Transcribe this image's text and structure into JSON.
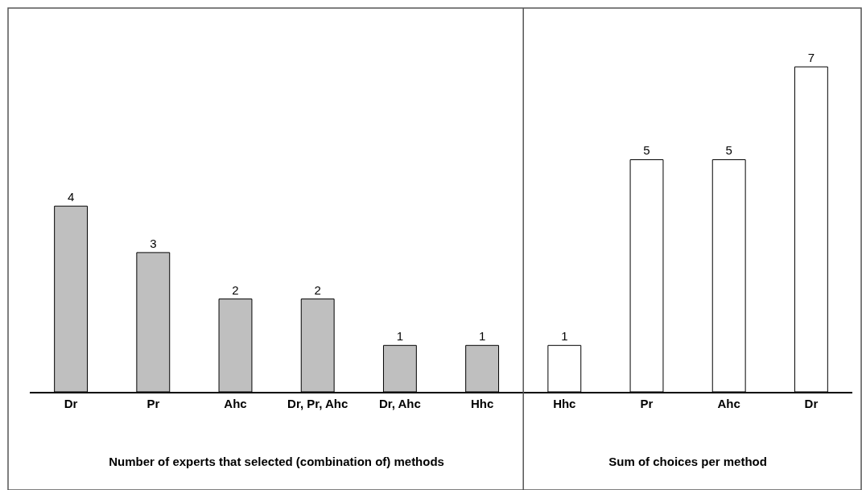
{
  "chart_data": [
    {
      "type": "bar",
      "xlabel": "Number of experts that selected (combination of) methods",
      "categories": [
        "Dr",
        "Pr",
        "Ahc",
        "Dr, Pr, Ahc",
        "Dr, Ahc",
        "Hhc"
      ],
      "values": [
        4,
        3,
        2,
        2,
        1,
        1
      ],
      "color": "#bfbfbf",
      "data_labels": true,
      "tick_labels": "x"
    },
    {
      "type": "bar",
      "xlabel": "Sum of choices per method",
      "categories": [
        "Hhc",
        "Pr",
        "Ahc",
        "Dr"
      ],
      "values": [
        1,
        5,
        5,
        7
      ],
      "color": "#ffffff",
      "data_labels": true,
      "tick_labels": "x"
    }
  ]
}
